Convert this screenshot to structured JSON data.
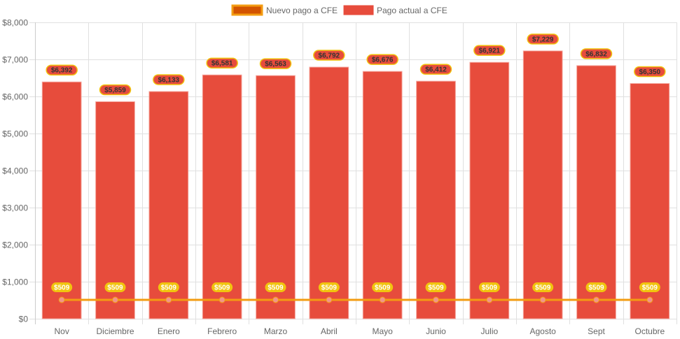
{
  "chart_data": {
    "type": "bar",
    "title": "",
    "xlabel": "",
    "ylabel": "",
    "ylim": [
      0,
      8000
    ],
    "grid": true,
    "legend_position": "top",
    "categories": [
      "Nov",
      "Diciembre",
      "Enero",
      "Febrero",
      "Marzo",
      "Abril",
      "Mayo",
      "Junio",
      "Julio",
      "Agosto",
      "Sept",
      "Octubre"
    ],
    "y_ticks": [
      0,
      1000,
      2000,
      3000,
      4000,
      5000,
      6000,
      7000,
      8000
    ],
    "y_tick_labels": [
      "$0",
      "$1,000",
      "$2,000",
      "$3,000",
      "$4,000",
      "$5,000",
      "$6,000",
      "$7,000",
      "$8,000"
    ],
    "series": [
      {
        "name": "Nuevo pago a CFE",
        "type": "line",
        "color": "#f39c12",
        "point_color": "#f1948a",
        "label_bg": "#f1c40f",
        "label_color": "#ffffff",
        "values": [
          509,
          509,
          509,
          509,
          509,
          509,
          509,
          509,
          509,
          509,
          509,
          509
        ],
        "labels": [
          "$509",
          "$509",
          "$509",
          "$509",
          "$509",
          "$509",
          "$509",
          "$509",
          "$509",
          "$509",
          "$509",
          "$509"
        ]
      },
      {
        "name": "Pago actual a CFE",
        "type": "bar",
        "color": "#e74c3c",
        "label_bg": "#e74c3c",
        "label_border": "#f1c40f",
        "label_color": "#333333",
        "values": [
          6392,
          5859,
          6133,
          6581,
          6563,
          6792,
          6676,
          6412,
          6921,
          7229,
          6832,
          6350
        ],
        "labels": [
          "$6,392",
          "$5,859",
          "$6,133",
          "$6,581",
          "$6,563",
          "$6,792",
          "$6,676",
          "$6,412",
          "$6,921",
          "$7,229",
          "$6,832",
          "$6,350"
        ]
      }
    ]
  },
  "legend": {
    "items": [
      {
        "label": "Nuevo pago a CFE",
        "fill": "#d35400",
        "border": "#f39c12"
      },
      {
        "label": "Pago actual a CFE",
        "fill": "#e74c3c",
        "border": "#e74c3c"
      }
    ]
  }
}
